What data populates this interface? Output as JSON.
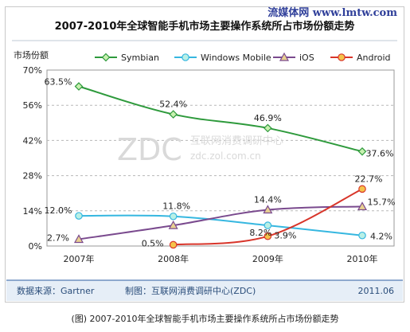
{
  "watermark": "流媒体网  www.lmtw.com",
  "caption": "(图) 2007-2010年全球智能手机市场主要操作系统所占市场份额走势",
  "source_text": "数据来源：Gartner",
  "producer_text": "制图：互联网消费调研中心(ZDC)",
  "date_text": "2011.06",
  "zdc_watermark": {
    "logo": "ZDC",
    "cn": "互联网消费调研中心",
    "url": "zdc.zol.com.cn"
  },
  "colors": {
    "symbian": "#2e9a3c",
    "windows_mobile": "#36b7e0",
    "ios": "#7a4a8e",
    "android": "#d8352a",
    "footer_bar": "#e6eef7"
  },
  "chart_data": {
    "type": "line",
    "title": "2007-2010年全球智能手机市场主要操作系统所占市场份额走势",
    "ylabel": "市场份额",
    "xlabel": "",
    "categories": [
      "2007年",
      "2008年",
      "2009年",
      "2010年"
    ],
    "ylim": [
      0,
      70
    ],
    "yticks": [
      "0%",
      "14%",
      "28%",
      "42%",
      "56%",
      "70%"
    ],
    "yticks_values": [
      0,
      14,
      28,
      42,
      56,
      70
    ],
    "grid": true,
    "legend_position": "top",
    "series": [
      {
        "name": "Symbian",
        "marker": "diamond",
        "color": "#2e9a3c",
        "values": [
          63.5,
          52.4,
          46.9,
          37.6
        ],
        "labels": [
          "63.5%",
          "52.4%",
          "46.9%",
          "37.6%"
        ]
      },
      {
        "name": "Windows Mobile",
        "marker": "circle",
        "color": "#36b7e0",
        "values": [
          12.0,
          11.8,
          8.2,
          4.2
        ],
        "labels": [
          "12.0%",
          "11.8%",
          "8.2%",
          "4.2%"
        ]
      },
      {
        "name": "iOS",
        "marker": "triangle",
        "color": "#7a4a8e",
        "values": [
          2.7,
          8.2,
          14.4,
          15.7
        ],
        "labels": [
          "2.7%",
          "",
          "14.4%",
          "15.7%"
        ]
      },
      {
        "name": "Android",
        "marker": "circle",
        "color": "#d8352a",
        "values": [
          null,
          0.5,
          3.9,
          22.7
        ],
        "labels": [
          "",
          "0.5%",
          "3.9%",
          "22.7%"
        ]
      }
    ]
  }
}
